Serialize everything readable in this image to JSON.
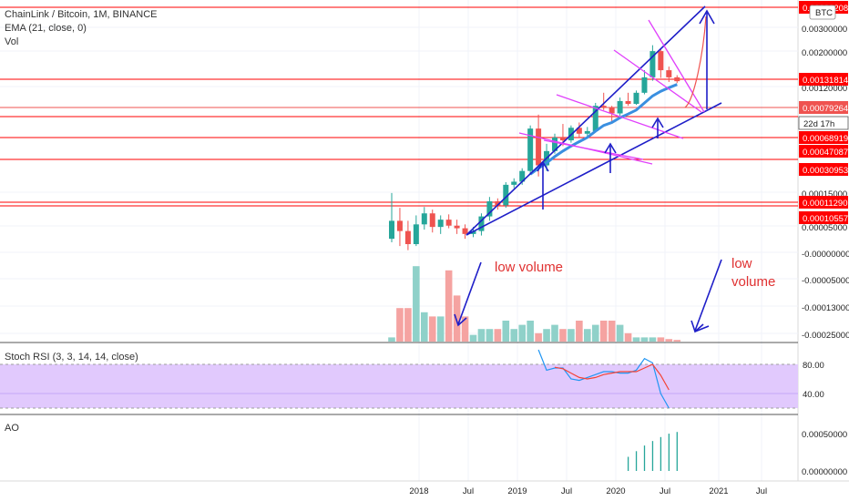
{
  "header": {
    "symbol_line": "ChainLink / Bitcoin, 1M, BINANCE",
    "ema_line": "EMA (21, close, 0)",
    "vol_line": "Vol"
  },
  "currency_badge": "BTC",
  "countdown": "22d 17h",
  "price_axis": {
    "ticks": [
      "0.00300000",
      "0.00200000",
      "0.00120000",
      "0.00015000",
      "0.00005000",
      "-0.00000000",
      "-0.00005000",
      "-0.00013000",
      "-0.00025000"
    ],
    "levels": [
      {
        "label": "0.00382208",
        "color": "#ff0000"
      },
      {
        "label": "0.00131814",
        "color": "#ff0000"
      },
      {
        "label": "0.00079264",
        "color": "#ef5350"
      },
      {
        "label": "0.00068919",
        "color": "#ff0000"
      },
      {
        "label": "0.00047087",
        "color": "#ff0000"
      },
      {
        "label": "0.00030953",
        "color": "#ff0000"
      },
      {
        "label": "0.00011290",
        "color": "#ff0000"
      },
      {
        "label": "0.00010557",
        "color": "#ff0000"
      }
    ]
  },
  "time_axis": [
    "2018",
    "Jul",
    "2019",
    "Jul",
    "2020",
    "Jul",
    "2021",
    "Jul"
  ],
  "annotations": {
    "low_volume_1": "low volume",
    "low_volume_2_line1": "low",
    "low_volume_2_line2": "volume"
  },
  "stoch_rsi": {
    "label": "Stoch RSI (3, 3, 14, 14, close)",
    "ticks": [
      "80.00",
      "40.00"
    ],
    "k_color": "#2196f3",
    "d_color": "#f44336",
    "band_color": "#e1c9fd"
  },
  "ao": {
    "label": "AO",
    "ticks": [
      "0.00050000",
      "0.00000000"
    ],
    "bar_color": "#26a69a"
  },
  "colors": {
    "up": "#26a69a",
    "down": "#ef5350",
    "ema": "#3a8fe0",
    "trend": "#1e1ec8",
    "fan": "#e040fb"
  },
  "chart_data": {
    "type": "candlestick",
    "timeframe": "1M",
    "scale": "log",
    "x": [
      "2017-12",
      "2018-01",
      "2018-02",
      "2018-03",
      "2018-04",
      "2018-05",
      "2018-06",
      "2018-07",
      "2018-08",
      "2018-09",
      "2018-10",
      "2018-11",
      "2018-12",
      "2019-01",
      "2019-02",
      "2019-03",
      "2019-04",
      "2019-05",
      "2019-06",
      "2019-07",
      "2019-08",
      "2019-09",
      "2019-10",
      "2019-11",
      "2019-12",
      "2020-01",
      "2020-02",
      "2020-03",
      "2020-04",
      "2020-05",
      "2020-06",
      "2020-07",
      "2020-08",
      "2020-09",
      "2020-10",
      "2020-11"
    ],
    "ohlc": [
      [
        2.8e-05,
        7.4e-05,
        2.6e-05,
        4.1e-05
      ],
      [
        4.1e-05,
        5.4e-05,
        2.4e-05,
        3.3e-05
      ],
      [
        3.3e-05,
        4.1e-05,
        2.2e-05,
        2.5e-05
      ],
      [
        2.5e-05,
        4.6e-05,
        2.4e-05,
        3.8e-05
      ],
      [
        3.8e-05,
        5.5e-05,
        3.4e-05,
        4.8e-05
      ],
      [
        4.8e-05,
        5.2e-05,
        3.2e-05,
        3.6e-05
      ],
      [
        3.6e-05,
        4.6e-05,
        3.1e-05,
        4.2e-05
      ],
      [
        4.2e-05,
        4.7e-05,
        3.5e-05,
        3.7e-05
      ],
      [
        3.7e-05,
        4.2e-05,
        3.1e-05,
        3.5e-05
      ],
      [
        3.5e-05,
        3.8e-05,
        2.8e-05,
        3.1e-05
      ],
      [
        3.1e-05,
        3.6e-05,
        2.9e-05,
        3.3e-05
      ],
      [
        3.3e-05,
        4.8e-05,
        3e-05,
        4.5e-05
      ],
      [
        4.5e-05,
        6.8e-05,
        4.1e-05,
        6.2e-05
      ],
      [
        6.2e-05,
        6.6e-05,
        5.2e-05,
        5.7e-05
      ],
      [
        5.7e-05,
        9.3e-05,
        5.4e-05,
        8.8e-05
      ],
      [
        8.8e-05,
        0.000101,
        8.2e-05,
        9.4e-05
      ],
      [
        9.4e-05,
        0.000125,
        8.8e-05,
        0.000118
      ],
      [
        0.000118,
        0.00031,
        0.00011,
        0.00029
      ],
      [
        0.00029,
        0.00039,
        0.000105,
        0.000133
      ],
      [
        0.000133,
        0.00021,
        0.000118,
        0.00018
      ],
      [
        0.00018,
        0.00026,
        0.00017,
        0.00024
      ],
      [
        0.00024,
        0.00032,
        0.0002,
        0.000226
      ],
      [
        0.000226,
        0.00031,
        0.000215,
        0.000295
      ],
      [
        0.000295,
        0.00033,
        0.00024,
        0.00026
      ],
      [
        0.00026,
        0.0003,
        0.000245,
        0.000275
      ],
      [
        0.000275,
        0.0005,
        0.00027,
        0.00047
      ],
      [
        0.00047,
        0.00062,
        0.00043,
        0.00045
      ],
      [
        0.00045,
        0.00047,
        0.00033,
        0.0004
      ],
      [
        0.0004,
        0.00056,
        0.00038,
        0.00052
      ],
      [
        0.00052,
        0.00062,
        0.00047,
        0.00049
      ],
      [
        0.00049,
        0.00065,
        0.00048,
        0.00062
      ],
      [
        0.00062,
        0.001,
        0.0006,
        0.00086
      ],
      [
        0.00086,
        0.0017,
        0.0008,
        0.0015
      ],
      [
        0.0015,
        0.00158,
        0.00085,
        0.001
      ],
      [
        0.001,
        0.00108,
        0.00078,
        0.00086
      ],
      [
        0.00086,
        0.0009,
        0.00076,
        0.000792
      ]
    ],
    "volume": [
      0.05,
      0.4,
      0.4,
      0.9,
      0.35,
      0.3,
      0.3,
      0.85,
      0.55,
      0.3,
      0.08,
      0.15,
      0.15,
      0.15,
      0.25,
      0.15,
      0.2,
      0.25,
      0.1,
      0.15,
      0.2,
      0.15,
      0.15,
      0.25,
      0.15,
      0.2,
      0.25,
      0.25,
      0.2,
      0.1,
      0.05,
      0.05,
      0.05,
      0.05,
      0.03,
      0.02
    ],
    "ema21": [
      null,
      null,
      null,
      null,
      null,
      null,
      null,
      null,
      null,
      null,
      null,
      null,
      null,
      null,
      null,
      null,
      null,
      0.00011,
      0.000125,
      0.00014,
      0.00016,
      0.00018,
      0.0002,
      0.00022,
      0.00024,
      0.000275,
      0.00031,
      0.00033,
      0.000365,
      0.000395,
      0.00043,
      0.0005,
      0.00058,
      0.00064,
      0.00069,
      0.00074
    ],
    "stoch_k": [
      null,
      null,
      null,
      null,
      null,
      null,
      null,
      null,
      null,
      null,
      null,
      null,
      null,
      null,
      null,
      null,
      null,
      null,
      100,
      72,
      75,
      75,
      60,
      58,
      62,
      66,
      70,
      70,
      68,
      68,
      72,
      88,
      82,
      40,
      5,
      null
    ],
    "stoch_d": [
      null,
      null,
      null,
      null,
      null,
      null,
      null,
      null,
      null,
      null,
      null,
      null,
      null,
      null,
      null,
      null,
      null,
      null,
      null,
      null,
      76,
      74,
      68,
      62,
      60,
      62,
      66,
      68,
      70,
      70,
      70,
      75,
      80,
      65,
      45,
      null
    ],
    "ao": [
      null,
      null,
      null,
      null,
      null,
      null,
      null,
      null,
      null,
      null,
      null,
      null,
      null,
      null,
      null,
      null,
      null,
      null,
      null,
      null,
      null,
      null,
      null,
      null,
      null,
      null,
      null,
      null,
      null,
      0.00025,
      0.00035,
      0.00045,
      0.00053,
      0.0006,
      0.00066,
      0.00069
    ]
  }
}
